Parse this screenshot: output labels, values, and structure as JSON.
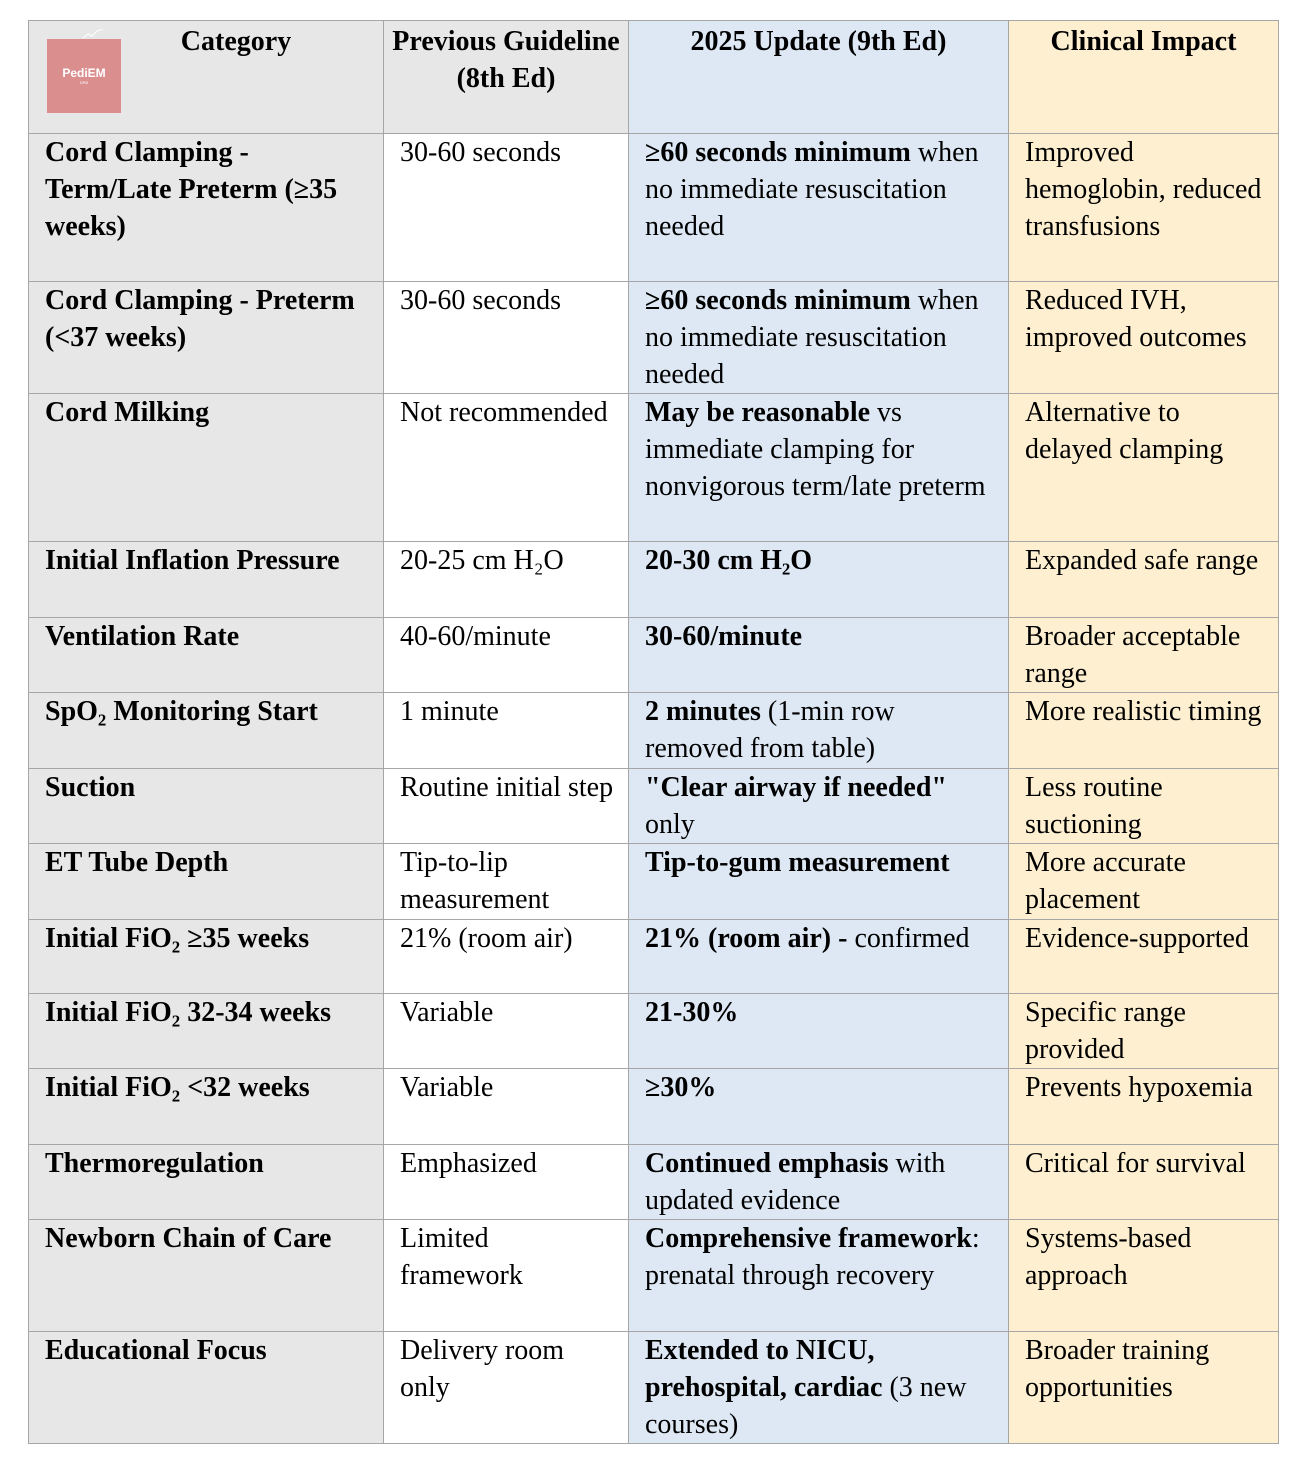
{
  "logo": {
    "text": "PediEM",
    "sub": "CPD"
  },
  "headers": {
    "category": "Category",
    "previous": "Previous Guideline (8th Ed)",
    "update": "2025 Update (9th Ed)",
    "impact": "Clinical Impact"
  },
  "rows": [
    {
      "category": "Cord Clamping - Term/Late Preterm (≥35 weeks)",
      "previous": "30-60 seconds",
      "update_bold": "≥60 seconds minimum",
      "update_rest": " when no immediate resuscitation needed",
      "impact": "Improved hemoglobin, reduced transfusions"
    },
    {
      "category": "Cord Clamping - Preterm (<37 weeks)",
      "previous": "30-60 seconds",
      "update_bold": "≥60 seconds minimum",
      "update_rest": " when no immediate resuscitation needed",
      "impact": "Reduced IVH, improved outcomes"
    },
    {
      "category": "Cord Milking",
      "previous": "Not recommended",
      "update_bold": "May be reasonable",
      "update_rest": " vs immediate clamping for nonvigorous term/late preterm",
      "impact": "Alternative to delayed clamping"
    },
    {
      "category": "Initial Inflation Pressure",
      "previous": "20-25 cm H₂O",
      "update_bold": "20-30 cm H₂O",
      "update_rest": "",
      "impact": "Expanded safe range"
    },
    {
      "category": "Ventilation Rate",
      "previous": "40-60/minute",
      "update_bold": "30-60/minute",
      "update_rest": "",
      "impact": "Broader acceptable range"
    },
    {
      "category": "SpO₂ Monitoring Start",
      "previous": "1 minute",
      "update_bold": "2 minutes",
      "update_rest": " (1-min row removed from table)",
      "impact": "More realistic timing"
    },
    {
      "category": "Suction",
      "previous": "Routine initial step",
      "update_bold": "\"Clear airway if needed\"",
      "update_rest": " only",
      "impact": "Less routine suctioning"
    },
    {
      "category": "ET Tube Depth",
      "previous": "Tip-to-lip measurement",
      "update_bold": "Tip-to-gum measurement",
      "update_rest": "",
      "impact": "More accurate placement"
    },
    {
      "category": "Initial FiO₂ ≥35 weeks",
      "previous": "21% (room air)",
      "update_bold": "21% (room air) -",
      "update_rest": " confirmed",
      "impact": "Evidence-supported"
    },
    {
      "category": "Initial FiO₂ 32-34 weeks",
      "previous": "Variable",
      "update_bold": "21-30%",
      "update_rest": "",
      "impact": "Specific range provided"
    },
    {
      "category": "Initial FiO₂ <32 weeks",
      "previous": "Variable",
      "update_bold": "≥30%",
      "update_rest": "",
      "impact": "Prevents hypoxemia"
    },
    {
      "category": "Thermoregulation",
      "previous": "Emphasized",
      "update_bold": "Continued emphasis",
      "update_rest": " with updated evidence",
      "impact": "Critical for survival"
    },
    {
      "category": "Newborn Chain of Care",
      "previous": "Limited framework",
      "update_bold": "Comprehensive framework",
      "update_rest": ": prenatal through recovery",
      "impact": "Systems-based approach"
    },
    {
      "category": "Educational Focus",
      "previous": "Delivery room only",
      "update_bold": "Extended to NICU, prehospital, cardiac",
      "update_rest": " (3 new courses)",
      "impact": "Broader training opportunities"
    }
  ]
}
